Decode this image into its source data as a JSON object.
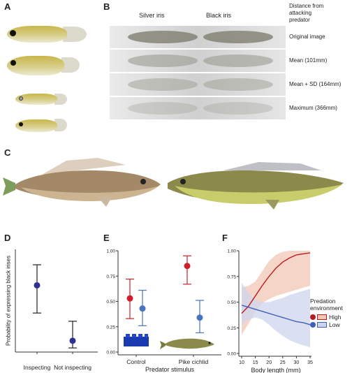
{
  "panels": {
    "A": "A",
    "B": "B",
    "C": "C",
    "D": "D",
    "E": "E",
    "F": "F"
  },
  "panel_b": {
    "col_silver": "Silver iris",
    "col_black": "Black iris",
    "header_line1": "Distance from",
    "header_line2": "attacking",
    "header_line3": "predator",
    "rows": [
      "Original image",
      "Mean (101mm)",
      "Mean + SD (164mm)",
      "Maximum (366mm)"
    ]
  },
  "chart_data": [
    {
      "type": "scatter",
      "panel": "D",
      "ylabel": "Probability of expressing black irises",
      "categories": [
        "Inspecting",
        "Not inspecting"
      ],
      "values": [
        0.65,
        0.11
      ],
      "ci_low": [
        0.38,
        0.04
      ],
      "ci_high": [
        0.85,
        0.3
      ],
      "ylim": [
        0,
        1
      ],
      "color": "#2f3192"
    },
    {
      "type": "scatter",
      "panel": "E",
      "xlabel": "Predator stimulus",
      "categories": [
        "Control",
        "Pike cichlid"
      ],
      "yticks": [
        "0.00",
        "0.25",
        "0.50",
        "0.75",
        "1.00"
      ],
      "ylim": [
        0,
        1
      ],
      "series": [
        {
          "color": "#cc1f27",
          "values": [
            0.53,
            0.85
          ],
          "ci_low": [
            0.33,
            0.67
          ],
          "ci_high": [
            0.72,
            0.95
          ]
        },
        {
          "color": "#4a73c2",
          "values": [
            0.43,
            0.34
          ],
          "ci_low": [
            0.26,
            0.19
          ],
          "ci_high": [
            0.61,
            0.51
          ]
        }
      ]
    },
    {
      "type": "line",
      "panel": "F",
      "xlabel": "Body length (mm)",
      "xticks": [
        10,
        15,
        20,
        25,
        30,
        35
      ],
      "yticks": [
        "0.00",
        "0.25",
        "0.50",
        "0.75",
        "1.00"
      ],
      "xlim": [
        10,
        35
      ],
      "ylim": [
        0,
        1
      ],
      "legend_title_line1": "Predation",
      "legend_title_line2": "environment",
      "series": [
        {
          "name": "High",
          "color": "#b81d24",
          "band": "#f2c7b4",
          "x": [
            10,
            12.5,
            15,
            17.5,
            20,
            22.5,
            25,
            27.5,
            30,
            32.5,
            35
          ],
          "y": [
            0.39,
            0.46,
            0.56,
            0.66,
            0.75,
            0.83,
            0.89,
            0.93,
            0.96,
            0.97,
            0.98
          ],
          "lo": [
            0.18,
            0.29,
            0.41,
            0.49,
            0.53,
            0.56,
            0.58,
            0.6,
            0.62,
            0.64,
            0.66
          ],
          "hi": [
            0.64,
            0.66,
            0.7,
            0.8,
            0.9,
            0.96,
            0.99,
            1.0,
            1.0,
            1.0,
            1.0
          ]
        },
        {
          "name": "Low",
          "color": "#3f5fb8",
          "band": "#cdd5ee",
          "x": [
            10,
            12.5,
            15,
            17.5,
            20,
            22.5,
            25,
            27.5,
            30,
            32.5,
            35
          ],
          "y": [
            0.47,
            0.45,
            0.43,
            0.41,
            0.39,
            0.37,
            0.35,
            0.33,
            0.31,
            0.3,
            0.28
          ],
          "lo": [
            0.28,
            0.33,
            0.35,
            0.33,
            0.28,
            0.22,
            0.17,
            0.13,
            0.1,
            0.08,
            0.06
          ],
          "hi": [
            0.69,
            0.59,
            0.52,
            0.5,
            0.5,
            0.52,
            0.54,
            0.57,
            0.59,
            0.61,
            0.63
          ]
        }
      ]
    }
  ]
}
